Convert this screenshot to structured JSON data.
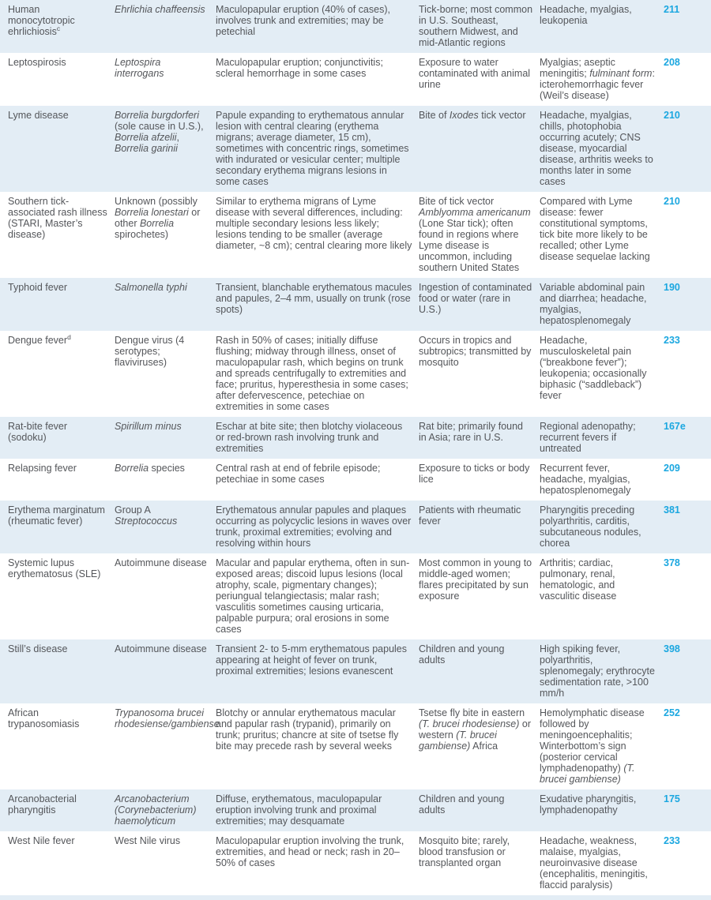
{
  "theme": {
    "accent_color": "#1ba7e0",
    "row_shade_color": "#e3edf5",
    "text_color": "#54565a"
  },
  "table": {
    "rows": [
      {
        "disease": [
          {
            "t": "Human monocytotropic ehrlichiosis"
          },
          {
            "t": "c",
            "sup": true
          }
        ],
        "agent": [
          {
            "t": "Ehrlichia chaffeensis",
            "i": true
          }
        ],
        "description": "Maculopapular eruption (40% of cases), involves trunk and extremities; may be petechial",
        "epidemiology": "Tick-borne; most common in U.S. Southeast, southern Midwest, and mid-Atlantic regions",
        "findings": "Headache, myalgias, leukopenia",
        "chapter": "211"
      },
      {
        "disease": "Leptospirosis",
        "agent": [
          {
            "t": "Leptospira interrogans",
            "i": true
          }
        ],
        "description": "Maculopapular eruption; conjunctivitis; scleral hemorrhage in some cases",
        "epidemiology": "Exposure to water contaminated with animal urine",
        "findings": [
          {
            "t": "Myalgias; aseptic meningitis; "
          },
          {
            "t": "fulminant form",
            "i": true
          },
          {
            "t": ": icterohemorrhagic fever (Weil’s disease)"
          }
        ],
        "chapter": "208"
      },
      {
        "disease": "Lyme disease",
        "agent": [
          {
            "t": "Borrelia burgdorferi",
            "i": true
          },
          {
            "t": " (sole cause in U.S.), "
          },
          {
            "t": "Borrelia afzelii",
            "i": true
          },
          {
            "t": ", "
          },
          {
            "t": "Borrelia garinii",
            "i": true
          }
        ],
        "description": "Papule expanding to erythematous annular lesion with central clearing (erythema migrans; average diameter, 15 cm), sometimes with concentric rings, sometimes with indurated or vesicular center; multiple secondary erythema migrans lesions in some cases",
        "epidemiology": [
          {
            "t": "Bite of "
          },
          {
            "t": "Ixodes",
            "i": true
          },
          {
            "t": " tick vector"
          }
        ],
        "findings": "Headache, myalgias, chills, photophobia occurring acutely; CNS disease, myocardial disease, arthritis weeks to months later in some cases",
        "chapter": "210"
      },
      {
        "disease": "Southern tick-associated rash illness (STARI, Master’s disease)",
        "agent": [
          {
            "t": "Unknown (possibly "
          },
          {
            "t": "Borrelia lonestari",
            "i": true
          },
          {
            "t": " or other "
          },
          {
            "t": "Borrelia",
            "i": true
          },
          {
            "t": " spirochetes)"
          }
        ],
        "description": "Similar to erythema migrans of Lyme disease with several differences, including: multiple secondary lesions less likely; lesions tending to be smaller (average diameter, ~8 cm); central clearing more likely",
        "epidemiology": [
          {
            "t": "Bite of tick vector "
          },
          {
            "t": "Amblyomma americanum",
            "i": true
          },
          {
            "t": " (Lone Star tick); often found in regions where Lyme disease is uncommon, including southern United States"
          }
        ],
        "findings": "Compared with Lyme disease: fewer constitutional symptoms, tick bite more likely to be recalled; other Lyme disease sequelae lacking",
        "chapter": "210"
      },
      {
        "disease": "Typhoid fever",
        "agent": [
          {
            "t": "Salmonella typhi",
            "i": true
          }
        ],
        "description": "Transient, blanchable erythematous macules and papules, 2–4 mm, usually on trunk (rose spots)",
        "epidemiology": "Ingestion of contaminated food or water (rare in U.S.)",
        "findings": "Variable abdominal pain and diarrhea; headache, myalgias, hepatosplenomegaly",
        "chapter": "190"
      },
      {
        "disease": [
          {
            "t": "Dengue fever"
          },
          {
            "t": "d",
            "sup": true
          }
        ],
        "agent": "Dengue virus (4 serotypes; flaviviruses)",
        "description": "Rash in 50% of cases; initially diffuse flushing; midway through illness, onset of maculopapular rash, which begins on trunk and spreads centrifugally to extremities and face; pruritus, hyperesthesia in some cases; after defervescence, petechiae on extremities in some cases",
        "epidemiology": "Occurs in tropics and subtropics; transmitted by mosquito",
        "findings": "Headache, musculoskeletal pain (“breakbone fever”); leukopenia; occasionally biphasic (“saddleback”) fever",
        "chapter": "233"
      },
      {
        "disease": "Rat-bite fever (sodoku)",
        "agent": [
          {
            "t": "Spirillum minus",
            "i": true
          }
        ],
        "description": "Eschar at bite site; then blotchy violaceous or red-brown rash involving trunk and extremities",
        "epidemiology": "Rat bite; primarily found in Asia; rare in U.S.",
        "findings": "Regional adenopathy; recurrent fevers if untreated",
        "chapter": "167e"
      },
      {
        "disease": "Relapsing fever",
        "agent": [
          {
            "t": "Borrelia",
            "i": true
          },
          {
            "t": " species"
          }
        ],
        "description": "Central rash at end of febrile episode; petechiae in some cases",
        "epidemiology": "Exposure to ticks or body lice",
        "findings": "Recurrent fever, headache, myalgias, hepatosplenomegaly",
        "chapter": "209"
      },
      {
        "disease": "Erythema marginatum (rheumatic fever)",
        "agent": [
          {
            "t": "Group A "
          },
          {
            "t": "Streptococcus",
            "i": true
          }
        ],
        "description": "Erythematous annular papules and plaques occurring as polycyclic lesions in waves over trunk, proximal extremities; evolving and resolving within hours",
        "epidemiology": "Patients with rheumatic fever",
        "findings": "Pharyngitis preceding polyarthritis, carditis, subcutaneous nodules, chorea",
        "chapter": "381"
      },
      {
        "disease": "Systemic lupus erythematosus (SLE)",
        "agent": "Autoimmune disease",
        "description": "Macular and papular erythema, often in sun-exposed areas; discoid lupus lesions (local atrophy, scale, pigmentary changes); periungual telangiectasis; malar rash; vasculitis sometimes causing urticaria, palpable purpura; oral erosions in some cases",
        "epidemiology": "Most common in young to middle-aged women; flares precipitated by sun exposure",
        "findings": "Arthritis; cardiac, pulmonary, renal, hematologic, and vasculitic disease",
        "chapter": "378"
      },
      {
        "disease": "Still’s disease",
        "agent": "Autoimmune disease",
        "description": "Transient 2- to 5-mm erythematous papules appearing at height of fever on trunk, proximal extremities; lesions evanescent",
        "epidemiology": "Children and young adults",
        "findings": "High spiking fever, polyarthritis, splenomegaly; erythrocyte sedimentation rate, >100 mm/h",
        "chapter": "398"
      },
      {
        "disease": "African trypanosomiasis",
        "agent": [
          {
            "t": "Trypanosoma brucei rhodesiense/gambiense",
            "i": true
          }
        ],
        "description": "Blotchy or annular erythematous macular and papular rash (trypanid), primarily on trunk; pruritus; chancre at site of tsetse fly bite may precede rash by several weeks",
        "epidemiology": [
          {
            "t": "Tsetse fly bite in eastern "
          },
          {
            "t": "(T. brucei rhodesiense)",
            "i": true
          },
          {
            "t": " or western "
          },
          {
            "t": "(T. brucei gambiense)",
            "i": true
          },
          {
            "t": " Africa"
          }
        ],
        "findings": [
          {
            "t": "Hemolymphatic disease followed by meningoencephalitis; Winterbottom’s sign (posterior cervical lymphadenopathy) "
          },
          {
            "t": "(T. brucei gambiense)",
            "i": true
          }
        ],
        "chapter": "252"
      },
      {
        "disease": "Arcanobacterial pharyngitis",
        "agent": [
          {
            "t": "Arcanobacterium (Corynebacterium) haemolyticum",
            "i": true
          }
        ],
        "description": "Diffuse, erythematous, maculopapular eruption involving trunk and proximal extremities; may desquamate",
        "epidemiology": "Children and young adults",
        "findings": "Exudative pharyngitis, lymphadenopathy",
        "chapter": "175"
      },
      {
        "disease": "West Nile fever",
        "agent": "West Nile virus",
        "description": "Maculopapular eruption involving the trunk, extremities, and head or neck; rash in 20–50% of cases",
        "epidemiology": "Mosquito bite; rarely, blood transfusion or transplanted organ",
        "findings": "Headache, weakness, malaise, myalgias, neuroinvasive disease (encephalitis, meningitis, flaccid paralysis)",
        "chapter": "233"
      }
    ]
  }
}
